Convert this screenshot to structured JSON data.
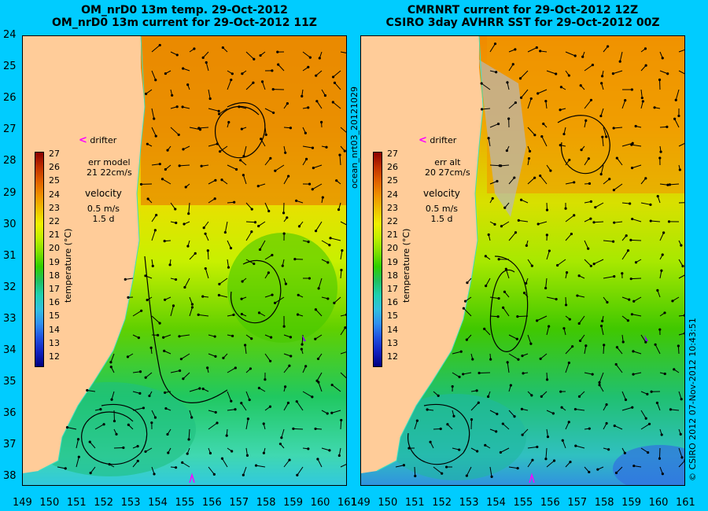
{
  "left": {
    "title_line1": "OM_nrD0 13m temp. 29-Oct-2012",
    "title_line2": "OM_nrD0 13m current for 29-Oct-2012 11Z",
    "drifter": "drifter",
    "err_label": "err model",
    "err_value": "21 22cm/s",
    "velocity": "velocity",
    "vel_scale": "0.5 m/s",
    "vel_time": "1.5 d"
  },
  "right": {
    "title_line1": "CMRNRT current for 29-Oct-2012 12Z",
    "title_line2": "CSIRO 3day AVHRR SST for 29-Oct-2012 00Z",
    "drifter": "drifter",
    "err_label": "err alt",
    "err_value": "20 27cm/s",
    "velocity": "velocity",
    "vel_scale": "0.5 m/s",
    "vel_time": "1.5 d"
  },
  "colorbar": {
    "labels": [
      "27",
      "26",
      "25",
      "24",
      "23",
      "22",
      "21",
      "20",
      "19",
      "18",
      "17",
      "16",
      "15",
      "14",
      "13",
      "12"
    ],
    "axis_title": "temperature (°C)"
  },
  "y_labels": [
    "24",
    "25",
    "26",
    "27",
    "28",
    "29",
    "30",
    "31",
    "32",
    "33",
    "34",
    "35",
    "36",
    "37",
    "38"
  ],
  "x_labels": [
    "149",
    "150",
    "151",
    "152",
    "153",
    "154",
    "155",
    "156",
    "157",
    "158",
    "159",
    "160",
    "161"
  ],
  "side_text_left": "ocean_nrt03_20121029",
  "side_text_right": "© CSIRO 2012   07-Nov-2012 10:43:51",
  "colors": {
    "background": "#00ccff",
    "land": "#ffcc99",
    "drifter": "#ff00ff"
  }
}
